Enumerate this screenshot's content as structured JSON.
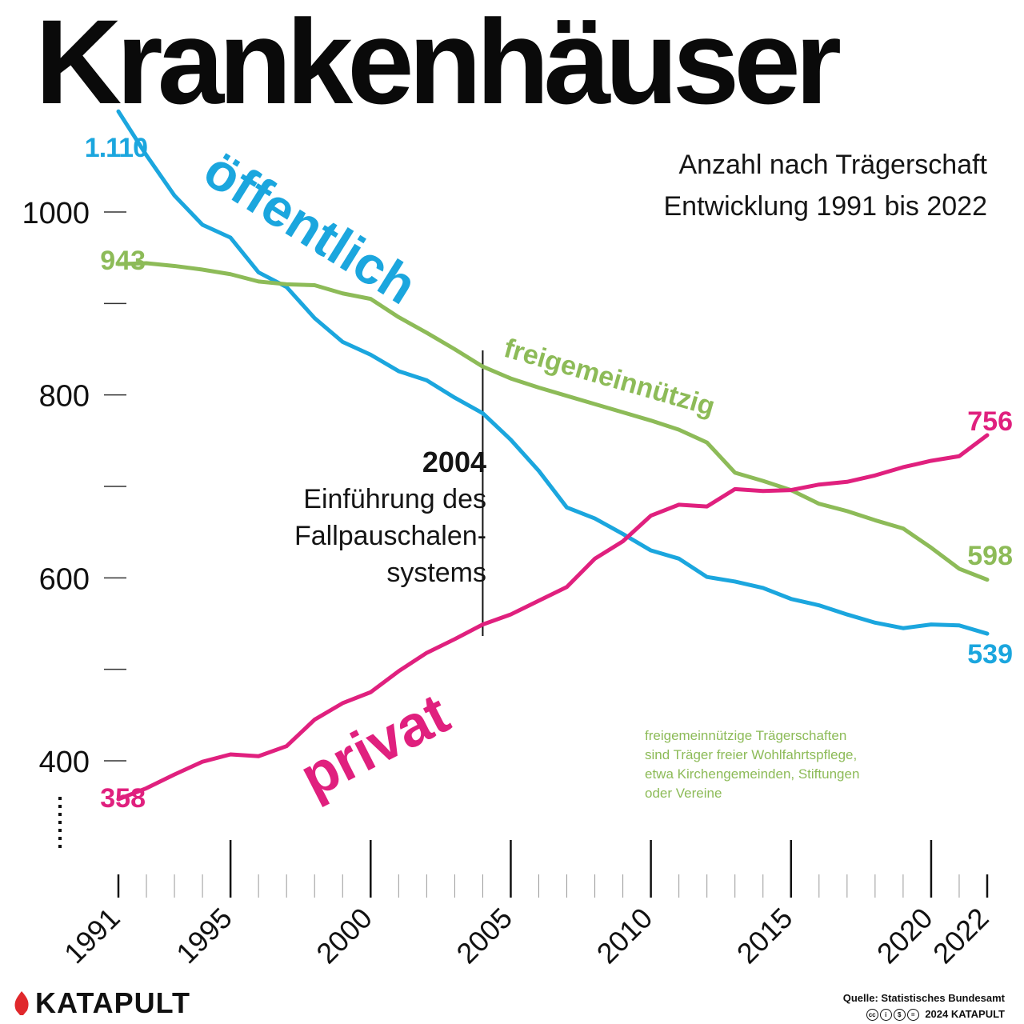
{
  "title": "Krankenhäuser",
  "subtitle_line1": "Anzahl nach Trägerschaft",
  "subtitle_line2": "Entwicklung 1991 bis 2022",
  "annotation": {
    "year": "2004",
    "line1": "Einführung des",
    "line2": "Fallpauschalen-",
    "line3": "systems"
  },
  "footnote": {
    "line1": "freigemeinnützige Trägerschaften",
    "line2": "sind Träger freier Wohlfahrtspflege,",
    "line3": "etwa Kirchengemeinden, Stiftungen",
    "line4": "oder Vereine"
  },
  "brand": "KATAPULT",
  "source": "Quelle: Statistisches Bundesamt",
  "copyright": "2024 KATAPULT",
  "colors": {
    "oeffentlich": "#1ba6de",
    "freigemeinnuetzig": "#8dbb58",
    "privat": "#e0207e"
  },
  "chart_data": {
    "type": "line",
    "x": [
      1991,
      1992,
      1993,
      1994,
      1995,
      1996,
      1997,
      1998,
      1999,
      2000,
      2001,
      2002,
      2003,
      2004,
      2005,
      2006,
      2007,
      2008,
      2009,
      2010,
      2011,
      2012,
      2013,
      2014,
      2015,
      2016,
      2017,
      2018,
      2019,
      2020,
      2021,
      2022
    ],
    "y_ticks": [
      1000,
      800,
      600,
      400
    ],
    "x_tick_labels": [
      1991,
      1995,
      2000,
      2005,
      2010,
      2015,
      2020,
      2022
    ],
    "xlim": [
      1991,
      2022
    ],
    "ylim": [
      300,
      1110
    ],
    "series": [
      {
        "name": "öffentlich",
        "start_label": "1.110",
        "end_label": "539",
        "values": [
          1110,
          1062,
          1018,
          986,
          972,
          934,
          918,
          884,
          858,
          844,
          826,
          816,
          797,
          780,
          751,
          717,
          677,
          665,
          648,
          630,
          621,
          601,
          596,
          589,
          577,
          570,
          560,
          551,
          545,
          549,
          548,
          539
        ]
      },
      {
        "name": "freigemeinnützig",
        "start_label": "943",
        "end_label": "598",
        "values": [
          943,
          944,
          941,
          937,
          932,
          924,
          921,
          920,
          911,
          905,
          885,
          868,
          850,
          831,
          818,
          808,
          799,
          790,
          781,
          772,
          762,
          748,
          715,
          706,
          696,
          681,
          673,
          663,
          654,
          633,
          610,
          598
        ]
      },
      {
        "name": "privat",
        "start_label": "358",
        "end_label": "756",
        "values": [
          358,
          370,
          385,
          399,
          407,
          405,
          416,
          445,
          463,
          475,
          498,
          518,
          533,
          549,
          560,
          575,
          590,
          621,
          640,
          668,
          680,
          678,
          697,
          695,
          696,
          702,
          705,
          712,
          721,
          728,
          733,
          756
        ]
      }
    ]
  }
}
